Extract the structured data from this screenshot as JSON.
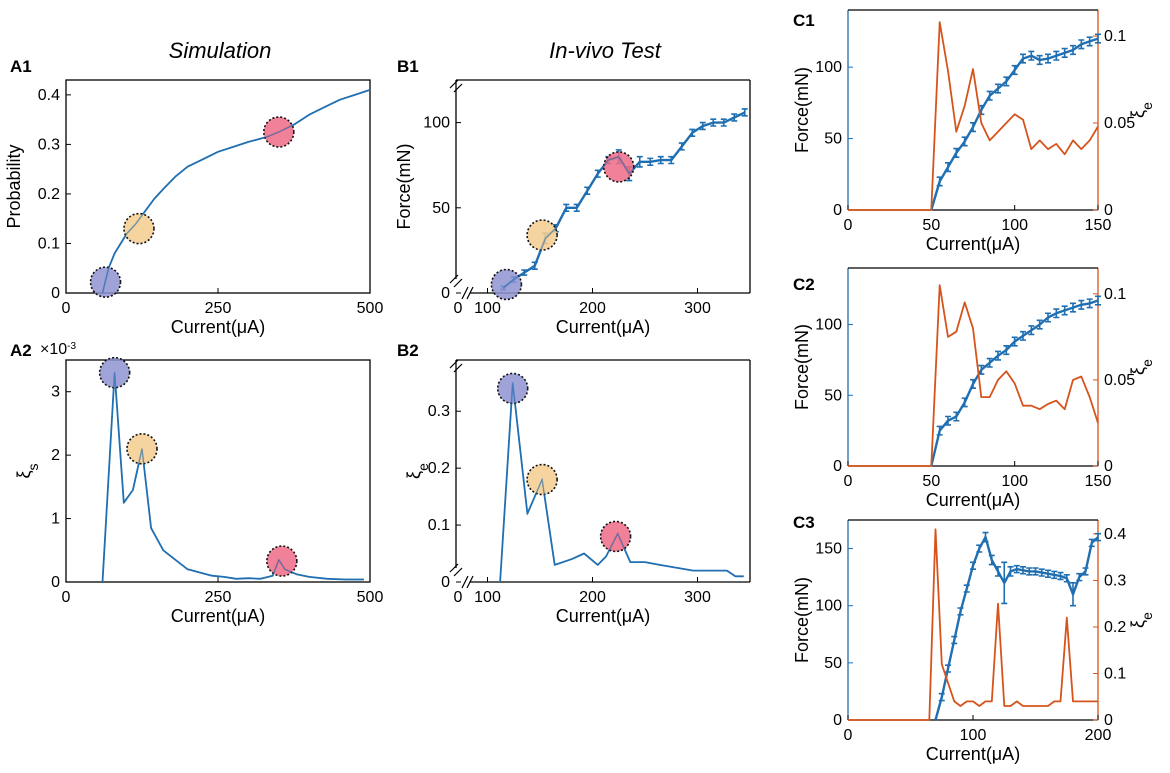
{
  "figure": {
    "headings": {
      "simulation": "Simulation",
      "in_vivo": "In-vivo Test"
    },
    "colors": {
      "blue": "#1f6fb2",
      "orange": "#d6541c",
      "marker_purple": "#8e93d0",
      "marker_yellow": "#f5cc8e",
      "marker_pink": "#ee6b86"
    }
  },
  "chart_data": [
    {
      "id": "A1",
      "panel_label": "A1",
      "type": "line",
      "title": "Simulation",
      "xlabel": "Current(μA)",
      "ylabel": "Probability",
      "xlim": [
        0,
        500
      ],
      "ylim": [
        0,
        0.43
      ],
      "xticks": [
        0,
        250,
        500
      ],
      "xticklabels": [
        "0",
        "250",
        "500"
      ],
      "yticks": [
        0,
        0.1,
        0.2,
        0.3,
        0.4
      ],
      "yticklabels": [
        "0",
        "0.1",
        "0.2",
        "0.3",
        "0.4"
      ],
      "series": [
        {
          "name": "Probability",
          "color": "#1f6fb2",
          "x": [
            60,
            70,
            80,
            90,
            100,
            115,
            130,
            145,
            160,
            180,
            200,
            225,
            250,
            275,
            300,
            330,
            350,
            375,
            400,
            425,
            450,
            475,
            500
          ],
          "y": [
            0.0,
            0.05,
            0.08,
            0.1,
            0.12,
            0.14,
            0.165,
            0.19,
            0.21,
            0.235,
            0.255,
            0.27,
            0.285,
            0.295,
            0.305,
            0.315,
            0.325,
            0.34,
            0.36,
            0.375,
            0.39,
            0.4,
            0.41
          ]
        }
      ],
      "markers": [
        {
          "x": 65,
          "y": 0.022,
          "color": "purple"
        },
        {
          "x": 120,
          "y": 0.13,
          "color": "yellow"
        },
        {
          "x": 350,
          "y": 0.325,
          "color": "pink"
        }
      ]
    },
    {
      "id": "A2",
      "panel_label": "A2",
      "type": "line",
      "xlabel": "Current(μA)",
      "ylabel": "ξs",
      "exponent": "×10",
      "exponent_power": "-3",
      "xlim": [
        0,
        500
      ],
      "ylim": [
        0,
        3.5
      ],
      "xticks": [
        0,
        250,
        500
      ],
      "xticklabels": [
        "0",
        "250",
        "500"
      ],
      "yticks": [
        0,
        1,
        2,
        3
      ],
      "yticklabels": [
        "0",
        "1",
        "2",
        "3"
      ],
      "series": [
        {
          "name": "ξs",
          "color": "#1f6fb2",
          "x": [
            60,
            80,
            95,
            110,
            125,
            140,
            160,
            180,
            200,
            220,
            240,
            260,
            280,
            300,
            320,
            340,
            350,
            360,
            380,
            400,
            430,
            460,
            490
          ],
          "y": [
            0.0,
            3.3,
            1.25,
            1.45,
            2.1,
            0.85,
            0.5,
            0.35,
            0.2,
            0.15,
            0.1,
            0.08,
            0.05,
            0.06,
            0.05,
            0.1,
            0.35,
            0.2,
            0.12,
            0.08,
            0.05,
            0.04,
            0.04
          ]
        }
      ],
      "markers": [
        {
          "x": 80,
          "y": 3.3,
          "color": "purple"
        },
        {
          "x": 125,
          "y": 2.1,
          "color": "yellow"
        },
        {
          "x": 355,
          "y": 0.33,
          "color": "pink"
        }
      ]
    },
    {
      "id": "B1",
      "panel_label": "B1",
      "type": "line",
      "title": "In-vivo Test",
      "xlabel": "Current(μA)",
      "ylabel": "Force(mN)",
      "xlim": [
        70,
        350
      ],
      "ylim": [
        0,
        125
      ],
      "xticks": [
        100,
        200,
        300
      ],
      "xticklabels": [
        "100",
        "200",
        "300"
      ],
      "yticks": [
        0,
        50,
        100
      ],
      "yticklabels": [
        "0",
        "50",
        "100"
      ],
      "x_origin_label": "0",
      "axis_breaks": true,
      "series": [
        {
          "name": "Force",
          "color": "#1f6fb2",
          "x": [
            115,
            125,
            135,
            145,
            155,
            165,
            175,
            185,
            195,
            205,
            215,
            225,
            235,
            245,
            255,
            265,
            275,
            285,
            295,
            305,
            315,
            325,
            335,
            345
          ],
          "y": [
            3,
            8,
            12,
            16,
            32,
            38,
            50,
            50,
            60,
            70,
            78,
            80,
            70,
            77,
            77,
            78,
            78,
            86,
            94,
            98,
            100,
            100,
            103,
            106
          ],
          "errors": [
            1,
            1.5,
            1.5,
            2,
            3,
            2,
            2,
            2,
            2,
            2,
            2,
            4,
            4,
            3,
            2,
            2,
            2,
            2,
            2,
            2,
            2,
            2,
            2,
            2
          ]
        }
      ],
      "markers": [
        {
          "x": 118,
          "y": 5,
          "color": "purple"
        },
        {
          "x": 152,
          "y": 34,
          "color": "yellow"
        },
        {
          "x": 225,
          "y": 74,
          "color": "pink"
        }
      ]
    },
    {
      "id": "B2",
      "panel_label": "B2",
      "type": "line",
      "xlabel": "Current(μA)",
      "ylabel": "ξe",
      "xlim": [
        70,
        350
      ],
      "ylim": [
        0,
        0.39
      ],
      "xticks": [
        100,
        200,
        300
      ],
      "xticklabels": [
        "100",
        "200",
        "300"
      ],
      "yticks": [
        0,
        0.1,
        0.2,
        0.3
      ],
      "yticklabels": [
        "0",
        "0.1",
        "0.2",
        "0.3"
      ],
      "x_origin_label": "0",
      "axis_breaks": true,
      "series": [
        {
          "name": "ξe",
          "color": "#1f6fb2",
          "x": [
            112,
            124,
            138,
            152,
            164,
            180,
            192,
            205,
            213,
            224,
            236,
            250,
            264,
            280,
            296,
            312,
            328,
            336,
            344
          ],
          "y": [
            0.0,
            0.35,
            0.12,
            0.18,
            0.03,
            0.04,
            0.05,
            0.03,
            0.045,
            0.085,
            0.035,
            0.035,
            0.03,
            0.025,
            0.02,
            0.02,
            0.02,
            0.01,
            0.01
          ]
        }
      ],
      "markers": [
        {
          "x": 124,
          "y": 0.34,
          "color": "purple"
        },
        {
          "x": 152,
          "y": 0.18,
          "color": "yellow"
        },
        {
          "x": 222,
          "y": 0.08,
          "color": "pink"
        }
      ]
    },
    {
      "id": "C1",
      "panel_label": "C1",
      "type": "line",
      "xlabel": "Current(μA)",
      "ylabel": "Force(mN)",
      "ylabel_right": "ξe",
      "xlim": [
        0,
        150
      ],
      "ylim": [
        0,
        140
      ],
      "ylim_right": [
        0,
        0.115
      ],
      "xticks": [
        0,
        50,
        100,
        150
      ],
      "xticklabels": [
        "0",
        "50",
        "100",
        "150"
      ],
      "yticks": [
        0,
        50,
        100
      ],
      "yticklabels": [
        "0",
        "50",
        "100"
      ],
      "yticks_right": [
        0,
        0.05,
        0.1
      ],
      "yticklabels_right": [
        "0",
        "0.05",
        "0.1"
      ],
      "series": [
        {
          "name": "Force",
          "axis": "left",
          "color": "#1f6fb2",
          "x": [
            50,
            55,
            60,
            65,
            70,
            75,
            80,
            85,
            90,
            95,
            100,
            105,
            110,
            115,
            120,
            125,
            130,
            135,
            140,
            145,
            150
          ],
          "y": [
            0,
            20,
            30,
            40,
            48,
            58,
            70,
            80,
            85,
            90,
            98,
            106,
            108,
            105,
            106,
            108,
            110,
            112,
            116,
            118,
            120
          ],
          "errors": [
            0,
            3,
            3,
            3,
            3,
            3,
            3,
            3,
            3,
            3,
            3,
            3,
            3,
            3,
            3,
            3,
            3,
            3,
            3,
            3,
            3
          ]
        },
        {
          "name": "ξe",
          "axis": "right",
          "color": "#d6541c",
          "x": [
            0,
            50,
            55,
            60,
            65,
            70,
            75,
            80,
            85,
            90,
            95,
            100,
            105,
            110,
            115,
            120,
            125,
            130,
            135,
            140,
            145,
            150
          ],
          "y": [
            0,
            0,
            0.108,
            0.08,
            0.045,
            0.06,
            0.081,
            0.05,
            0.04,
            0.045,
            0.05,
            0.055,
            0.052,
            0.035,
            0.04,
            0.035,
            0.038,
            0.032,
            0.04,
            0.035,
            0.04,
            0.048
          ]
        }
      ]
    },
    {
      "id": "C2",
      "panel_label": "C2",
      "type": "line",
      "xlabel": "Current(μA)",
      "ylabel": "Force(mN)",
      "ylabel_right": "ξe",
      "xlim": [
        0,
        150
      ],
      "ylim": [
        0,
        140
      ],
      "ylim_right": [
        0,
        0.115
      ],
      "xticks": [
        0,
        50,
        100,
        150
      ],
      "xticklabels": [
        "0",
        "50",
        "100",
        "150"
      ],
      "yticks": [
        0,
        50,
        100
      ],
      "yticklabels": [
        "0",
        "50",
        "100"
      ],
      "yticks_right": [
        0,
        0.05,
        0.1
      ],
      "yticklabels_right": [
        "0",
        "0.05",
        "0.1"
      ],
      "series": [
        {
          "name": "Force",
          "axis": "left",
          "color": "#1f6fb2",
          "x": [
            50,
            55,
            60,
            65,
            70,
            75,
            80,
            85,
            90,
            95,
            100,
            105,
            110,
            115,
            120,
            125,
            130,
            135,
            140,
            145,
            150
          ],
          "y": [
            0,
            25,
            32,
            35,
            45,
            58,
            68,
            73,
            78,
            82,
            88,
            92,
            96,
            100,
            105,
            108,
            110,
            112,
            114,
            115,
            117
          ],
          "errors": [
            0,
            3,
            3,
            3,
            3,
            3,
            3,
            3,
            3,
            3,
            3,
            3,
            3,
            3,
            3,
            3,
            3,
            3,
            3,
            3,
            3
          ]
        },
        {
          "name": "ξe",
          "axis": "right",
          "color": "#d6541c",
          "x": [
            0,
            50,
            55,
            60,
            65,
            70,
            75,
            80,
            85,
            90,
            95,
            100,
            105,
            110,
            115,
            120,
            125,
            130,
            135,
            140,
            145,
            150
          ],
          "y": [
            0,
            0,
            0.105,
            0.075,
            0.078,
            0.095,
            0.08,
            0.04,
            0.04,
            0.05,
            0.055,
            0.048,
            0.035,
            0.035,
            0.033,
            0.036,
            0.038,
            0.033,
            0.05,
            0.052,
            0.04,
            0.025
          ]
        }
      ]
    },
    {
      "id": "C3",
      "panel_label": "C3",
      "type": "line",
      "xlabel": "Current(μA)",
      "ylabel": "Force(mN)",
      "ylabel_right": "ξe",
      "xlim": [
        0,
        200
      ],
      "ylim": [
        0,
        175
      ],
      "ylim_right": [
        0,
        0.43
      ],
      "xticks": [
        0,
        100,
        200
      ],
      "xticklabels": [
        "0",
        "100",
        "200"
      ],
      "yticks": [
        0,
        50,
        100,
        150
      ],
      "yticklabels": [
        "0",
        "50",
        "100",
        "150"
      ],
      "yticks_right": [
        0,
        0.1,
        0.2,
        0.3,
        0.4
      ],
      "yticklabels_right": [
        "0",
        "0.1",
        "0.2",
        "0.3",
        "0.4"
      ],
      "series": [
        {
          "name": "Force",
          "axis": "left",
          "color": "#1f6fb2",
          "x": [
            70,
            75,
            80,
            85,
            90,
            95,
            100,
            105,
            110,
            115,
            120,
            125,
            130,
            135,
            140,
            145,
            150,
            155,
            160,
            165,
            170,
            175,
            180,
            185,
            190,
            195,
            200
          ],
          "y": [
            0,
            20,
            45,
            70,
            95,
            115,
            135,
            150,
            160,
            140,
            130,
            120,
            130,
            132,
            131,
            130,
            130,
            129,
            128,
            127,
            126,
            124,
            110,
            125,
            130,
            155,
            160
          ],
          "errors": [
            0,
            3,
            3,
            3,
            3,
            3,
            3,
            3,
            4,
            4,
            4,
            18,
            4,
            3,
            3,
            3,
            3,
            3,
            3,
            3,
            3,
            3,
            10,
            3,
            3,
            3,
            3
          ]
        },
        {
          "name": "ξe",
          "axis": "right",
          "color": "#d6541c",
          "x": [
            0,
            65,
            70,
            75,
            80,
            85,
            90,
            95,
            100,
            105,
            110,
            115,
            120,
            125,
            130,
            135,
            140,
            145,
            150,
            155,
            160,
            165,
            170,
            175,
            180,
            185,
            190,
            195,
            200
          ],
          "y": [
            0,
            0,
            0.41,
            0.12,
            0.08,
            0.04,
            0.03,
            0.04,
            0.04,
            0.03,
            0.04,
            0.04,
            0.25,
            0.03,
            0.03,
            0.04,
            0.03,
            0.03,
            0.03,
            0.03,
            0.03,
            0.04,
            0.04,
            0.22,
            0.04,
            0.04,
            0.04,
            0.04,
            0.04
          ]
        }
      ]
    }
  ]
}
